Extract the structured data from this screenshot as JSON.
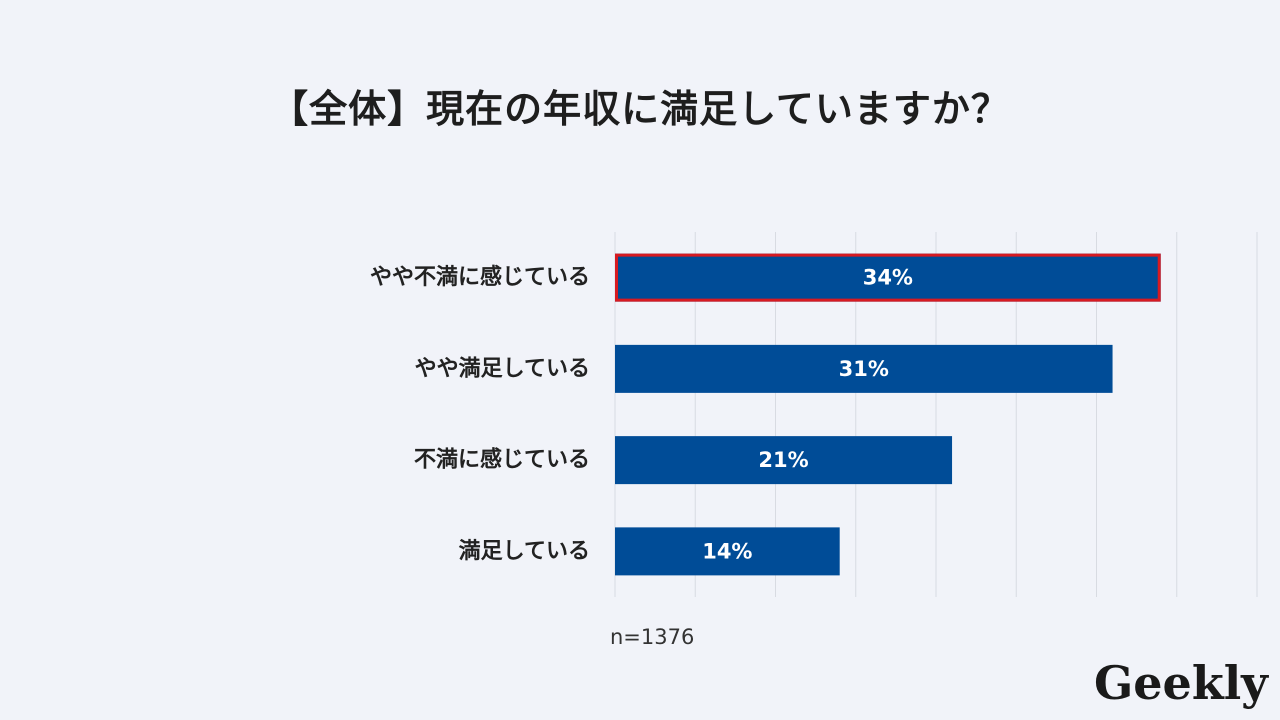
{
  "chart_data": {
    "type": "bar",
    "orientation": "horizontal",
    "title": "【全体】現在の年収に満足していますか？",
    "categories": [
      "やや不満に感じている",
      "やや満足している",
      "不満に感じている",
      "満足している"
    ],
    "values": [
      34,
      31,
      21,
      14
    ],
    "value_labels": [
      "34%",
      "31%",
      "21%",
      "14%"
    ],
    "xlim": [
      0,
      40
    ],
    "grid": true,
    "highlighted_category": "やや不満に感じている",
    "note": "n=1376"
  },
  "colors": {
    "bar": "#004c97",
    "highlight_border": "#d71a21",
    "grid": "#d8dbe2",
    "background": "#f1f3f9"
  },
  "brand": {
    "logo_text": "Geekly"
  }
}
